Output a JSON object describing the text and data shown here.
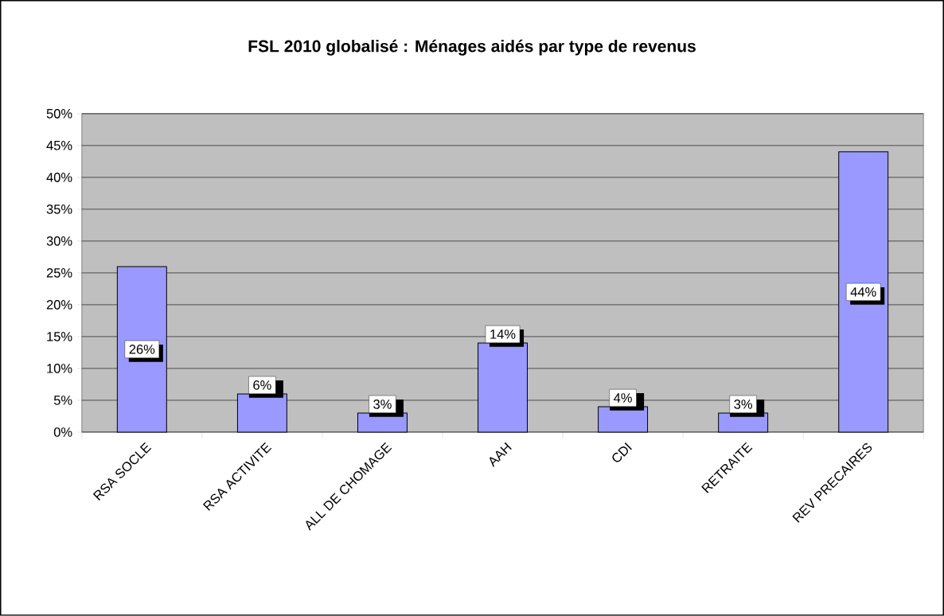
{
  "chart_data": {
    "type": "bar",
    "title": "FSL 2010 globalisé : Ménages aidés par type de revenus",
    "categories": [
      "RSA SOCLE",
      "RSA ACTIVITE",
      "ALL DE CHOMAGE",
      "AAH",
      "CDI",
      "RETRAITE",
      "REV PRECAIRES"
    ],
    "values": [
      26,
      6,
      3,
      14,
      4,
      3,
      44
    ],
    "value_labels": [
      "26%",
      "6%",
      "3%",
      "14%",
      "4%",
      "3%",
      "44%"
    ],
    "color": "#9999ff",
    "ylim": [
      0,
      50
    ],
    "yticks": [
      {
        "value": 0,
        "label": "0%"
      },
      {
        "value": 5,
        "label": "5%"
      },
      {
        "value": 10,
        "label": "10%"
      },
      {
        "value": 15,
        "label": "15%"
      },
      {
        "value": 20,
        "label": "20%"
      },
      {
        "value": 25,
        "label": "25%"
      },
      {
        "value": 30,
        "label": "30%"
      },
      {
        "value": 35,
        "label": "35%"
      },
      {
        "value": 40,
        "label": "40%"
      },
      {
        "value": 45,
        "label": "45%"
      },
      {
        "value": 50,
        "label": "50%"
      }
    ],
    "grid": "y"
  }
}
